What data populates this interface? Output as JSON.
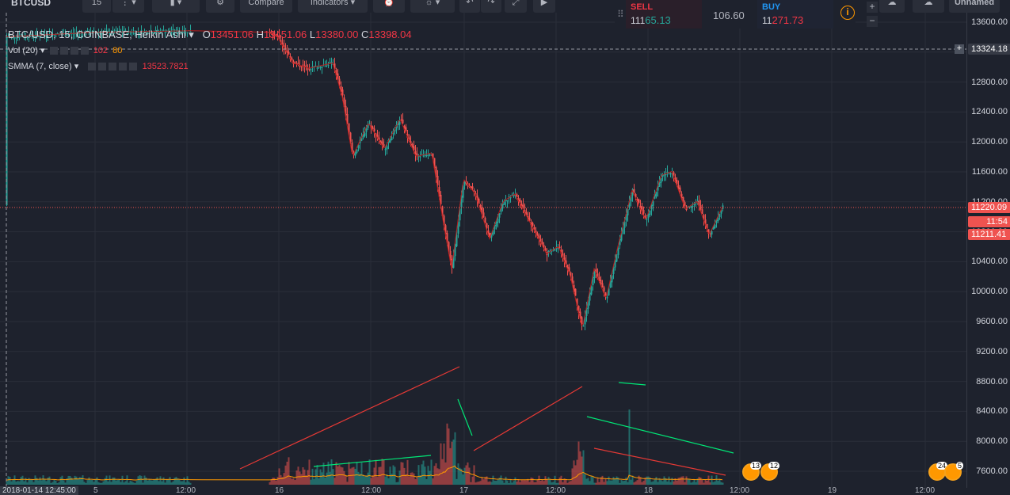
{
  "toolbar": {
    "symbol": "BTCUSD",
    "interval": "15",
    "compare_label": "Compare",
    "indicators_label": "Indicators",
    "layout_name": "Unnamed"
  },
  "legend": {
    "title": "BTC/USD, 15, COINBASE, Heikin Ashi",
    "o_label": "O",
    "o": "13451.06",
    "h_label": "H",
    "h": "13451.06",
    "l_label": "L",
    "l": "13380.00",
    "c_label": "C",
    "c": "13398.04"
  },
  "indicators": {
    "vol_label": "Vol (20)",
    "vol_value": "102",
    "vol_ma": "80",
    "smma_label": "SMMA (7, close)",
    "smma_value": "13523.7821"
  },
  "trade": {
    "sell_label": "SELL",
    "sell_price_prefix": "111",
    "sell_price_big": "65.13",
    "spread": "106.60",
    "buy_label": "BUY",
    "buy_price_prefix": "11",
    "buy_price_big": "271.73",
    "info": "i"
  },
  "price_axis": {
    "ticks": [
      "13600.00",
      "13200.00",
      "12800.00",
      "12400.00",
      "12000.00",
      "11600.00",
      "11200.00",
      "10800.00",
      "10400.00",
      "10000.00",
      "9600.00",
      "9200.00",
      "8800.00",
      "8400.00",
      "8000.00",
      "7600.00"
    ],
    "crosshair_price": "13324.18",
    "last_price": "11220.09",
    "countdown": "11:54",
    "smma_price": "11211.41"
  },
  "time_axis": {
    "labels": [
      "2018-01-14 12:45:00",
      "5",
      "12:00",
      "16",
      "12:00",
      "17",
      "12:00",
      "18",
      "12:00",
      "19",
      "12:00"
    ]
  },
  "events": {
    "badge1_count": "13",
    "badge2_count": "12",
    "badge3_count": "24",
    "badge4_count": "5"
  },
  "colors": {
    "up": "#26a69a",
    "down": "#ef5350",
    "background": "#1e222d",
    "grid": "#2a2e39",
    "smma": "#b71c1c"
  }
}
